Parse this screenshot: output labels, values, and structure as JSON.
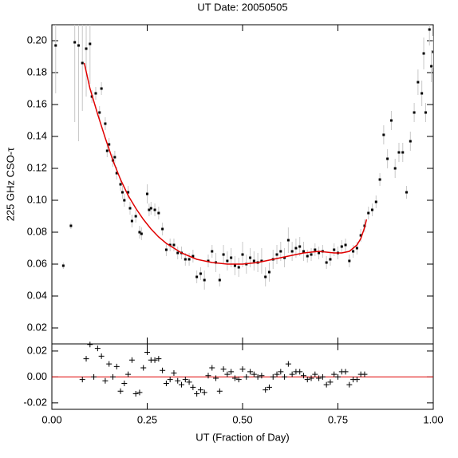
{
  "chart_data": [
    {
      "type": "scatter",
      "title": "UT Date: 20050505",
      "y_label": "225 GHz CSO-τ",
      "xlim": [
        0,
        1
      ],
      "ylim": [
        0.01,
        0.21
      ],
      "yticks": [
        0.02,
        0.04,
        0.06,
        0.08,
        {
          "value": 0.1,
          "label": "0.10"
        },
        0.12,
        0.14,
        0.16,
        0.18,
        {
          "value": 0.2,
          "label": "0.20"
        }
      ],
      "grid": false,
      "series": [
        {
          "kind": "points",
          "color": "#000000",
          "error_color": "#c8c8c8",
          "x": [
            0.01,
            0.03,
            0.05,
            0.06,
            0.07,
            0.08,
            0.09,
            0.1,
            0.105,
            0.115,
            0.125,
            0.13,
            0.14,
            0.145,
            0.15,
            0.16,
            0.165,
            0.17,
            0.18,
            0.185,
            0.19,
            0.2,
            0.205,
            0.21,
            0.22,
            0.23,
            0.235,
            0.25,
            0.255,
            0.26,
            0.27,
            0.28,
            0.29,
            0.3,
            0.31,
            0.32,
            0.33,
            0.34,
            0.35,
            0.36,
            0.37,
            0.38,
            0.39,
            0.4,
            0.41,
            0.42,
            0.43,
            0.44,
            0.45,
            0.46,
            0.47,
            0.48,
            0.49,
            0.5,
            0.51,
            0.52,
            0.53,
            0.54,
            0.55,
            0.56,
            0.57,
            0.58,
            0.59,
            0.6,
            0.61,
            0.62,
            0.63,
            0.64,
            0.65,
            0.66,
            0.67,
            0.68,
            0.69,
            0.7,
            0.71,
            0.72,
            0.73,
            0.74,
            0.75,
            0.76,
            0.77,
            0.78,
            0.79,
            0.8,
            0.81,
            0.82,
            0.83,
            0.84,
            0.85,
            0.86,
            0.87,
            0.88,
            0.89,
            0.9,
            0.91,
            0.92,
            0.93,
            0.94,
            0.95,
            0.96,
            0.97,
            0.975,
            0.98,
            0.99,
            0.995,
            1.0
          ],
          "values": [
            0.197,
            0.059,
            0.084,
            0.199,
            0.197,
            0.186,
            0.195,
            0.198,
            0.165,
            0.167,
            0.155,
            0.17,
            0.148,
            0.131,
            0.135,
            0.125,
            0.127,
            0.117,
            0.11,
            0.105,
            0.1,
            0.105,
            0.095,
            0.087,
            0.09,
            0.08,
            0.079,
            0.104,
            0.094,
            0.095,
            0.094,
            0.092,
            0.082,
            0.069,
            0.072,
            0.072,
            0.067,
            0.067,
            0.063,
            0.063,
            0.065,
            0.052,
            0.054,
            0.05,
            0.062,
            0.068,
            0.061,
            0.05,
            0.066,
            0.062,
            0.064,
            0.059,
            0.058,
            0.066,
            0.06,
            0.064,
            0.062,
            0.061,
            0.062,
            0.052,
            0.055,
            0.063,
            0.066,
            0.068,
            0.064,
            0.075,
            0.068,
            0.07,
            0.071,
            0.068,
            0.065,
            0.066,
            0.069,
            0.067,
            0.068,
            0.061,
            0.063,
            0.069,
            0.067,
            0.071,
            0.072,
            0.062,
            0.068,
            0.07,
            0.078,
            0.084,
            0.092,
            0.094,
            0.099,
            0.113,
            0.141,
            0.126,
            0.15,
            0.12,
            0.13,
            0.13,
            0.105,
            0.137,
            0.155,
            0.174,
            0.167,
            0.192,
            0.155,
            0.207,
            0.184,
            0.193
          ],
          "errors": [
            0.03,
            0.002,
            0.002,
            0.05,
            0.06,
            0.03,
            0.03,
            0.025,
            0.004,
            0.004,
            0.004,
            0.004,
            0.004,
            0.004,
            0.004,
            0.004,
            0.004,
            0.004,
            0.004,
            0.004,
            0.004,
            0.004,
            0.004,
            0.004,
            0.004,
            0.004,
            0.004,
            0.006,
            0.004,
            0.004,
            0.004,
            0.004,
            0.004,
            0.004,
            0.004,
            0.004,
            0.004,
            0.004,
            0.004,
            0.004,
            0.004,
            0.004,
            0.004,
            0.006,
            0.004,
            0.004,
            0.006,
            0.004,
            0.006,
            0.006,
            0.006,
            0.006,
            0.006,
            0.008,
            0.006,
            0.006,
            0.006,
            0.006,
            0.008,
            0.006,
            0.006,
            0.006,
            0.006,
            0.006,
            0.006,
            0.008,
            0.006,
            0.006,
            0.006,
            0.006,
            0.004,
            0.004,
            0.004,
            0.004,
            0.004,
            0.004,
            0.004,
            0.004,
            0.004,
            0.004,
            0.004,
            0.004,
            0.004,
            0.004,
            0.004,
            0.004,
            0.004,
            0.004,
            0.004,
            0.004,
            0.006,
            0.006,
            0.006,
            0.006,
            0.006,
            0.006,
            0.004,
            0.006,
            0.006,
            0.008,
            0.008,
            0.01,
            0.006,
            0.01,
            0.01,
            0.01
          ]
        },
        {
          "kind": "line",
          "color": "#e00000",
          "x": [
            0.085,
            0.1,
            0.12,
            0.14,
            0.16,
            0.18,
            0.2,
            0.22,
            0.24,
            0.26,
            0.28,
            0.3,
            0.32,
            0.34,
            0.36,
            0.38,
            0.4,
            0.42,
            0.44,
            0.46,
            0.48,
            0.5,
            0.52,
            0.54,
            0.56,
            0.58,
            0.6,
            0.62,
            0.64,
            0.66,
            0.68,
            0.7,
            0.72,
            0.74,
            0.76,
            0.78,
            0.8,
            0.81,
            0.82,
            0.825
          ],
          "values": [
            0.186,
            0.17,
            0.154,
            0.139,
            0.125,
            0.113,
            0.103,
            0.095,
            0.088,
            0.082,
            0.077,
            0.073,
            0.07,
            0.067,
            0.065,
            0.063,
            0.062,
            0.061,
            0.0605,
            0.06,
            0.06,
            0.06,
            0.0605,
            0.061,
            0.062,
            0.063,
            0.064,
            0.065,
            0.066,
            0.067,
            0.0675,
            0.068,
            0.0675,
            0.067,
            0.067,
            0.068,
            0.072,
            0.076,
            0.083,
            0.088
          ]
        }
      ]
    },
    {
      "type": "scatter",
      "x_label": "UT (Fraction of Day)",
      "xlim": [
        0,
        1
      ],
      "xticks": [
        {
          "value": 0,
          "label": "0.00"
        },
        {
          "value": 0.25,
          "label": "0.25"
        },
        {
          "value": 0.5,
          "label": "0.50"
        },
        {
          "value": 0.75,
          "label": "0.75"
        },
        {
          "value": 1,
          "label": "1.00"
        }
      ],
      "ylim": [
        -0.025,
        0.0255
      ],
      "yticks": [
        {
          "value": -0.02,
          "label": "-0.02"
        },
        {
          "value": 0,
          "label": "0.00"
        },
        {
          "value": 0.02,
          "label": "0.02"
        }
      ],
      "grid": false,
      "reference_line": {
        "value": 0,
        "color": "#e00000"
      },
      "series": [
        {
          "kind": "plus",
          "color": "#000000",
          "x": [
            0.08,
            0.09,
            0.1,
            0.11,
            0.12,
            0.13,
            0.14,
            0.15,
            0.16,
            0.17,
            0.18,
            0.19,
            0.2,
            0.21,
            0.22,
            0.23,
            0.24,
            0.25,
            0.26,
            0.27,
            0.28,
            0.29,
            0.3,
            0.31,
            0.32,
            0.33,
            0.34,
            0.35,
            0.36,
            0.37,
            0.38,
            0.39,
            0.4,
            0.41,
            0.42,
            0.43,
            0.44,
            0.45,
            0.46,
            0.47,
            0.48,
            0.49,
            0.5,
            0.51,
            0.52,
            0.53,
            0.54,
            0.55,
            0.56,
            0.57,
            0.58,
            0.59,
            0.6,
            0.61,
            0.62,
            0.63,
            0.64,
            0.65,
            0.66,
            0.67,
            0.68,
            0.69,
            0.7,
            0.71,
            0.72,
            0.73,
            0.74,
            0.75,
            0.76,
            0.77,
            0.78,
            0.79,
            0.8,
            0.81,
            0.82
          ],
          "values": [
            -0.002,
            0.014,
            0.025,
            0.0,
            0.022,
            0.016,
            -0.003,
            0.01,
            0.0,
            0.008,
            -0.011,
            -0.005,
            0.002,
            0.013,
            -0.013,
            -0.012,
            0.007,
            0.019,
            0.013,
            0.013,
            0.014,
            0.005,
            -0.005,
            -0.002,
            0.003,
            -0.003,
            -0.006,
            -0.002,
            -0.004,
            -0.008,
            -0.013,
            -0.01,
            -0.012,
            0.001,
            0.007,
            -0.001,
            -0.011,
            0.006,
            0.002,
            0.004,
            -0.001,
            -0.002,
            0.006,
            0.0,
            0.004,
            0.002,
            0.0,
            0.001,
            -0.01,
            -0.008,
            0.0,
            0.002,
            0.004,
            0.0,
            0.01,
            0.002,
            0.004,
            0.004,
            0.001,
            -0.002,
            -0.001,
            0.002,
            -0.001,
            0.0,
            -0.006,
            -0.004,
            0.002,
            0.0,
            0.004,
            0.004,
            -0.006,
            -0.002,
            -0.002,
            0.002,
            0.002
          ]
        }
      ]
    }
  ]
}
